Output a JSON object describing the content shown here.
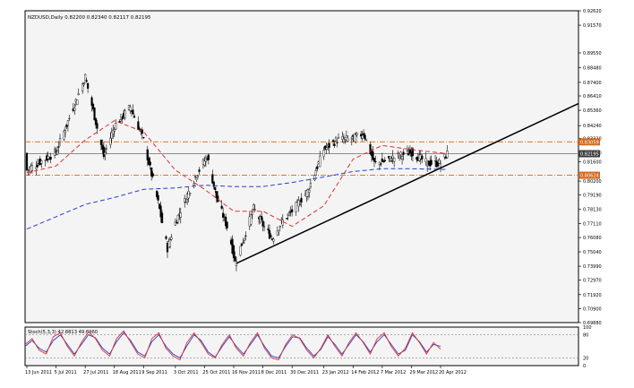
{
  "chart_data": {
    "type": "candlestick",
    "header": "NZDUSD,Daily  0.82200 0.82340 0.82117 0.82195",
    "price_axis": {
      "ticks": [
        "0.92620",
        "0.91570",
        "0.89550",
        "0.88480",
        "0.87400",
        "0.86410",
        "0.85360",
        "0.84240",
        "0.83320",
        "0.82250",
        "0.81600",
        "0.80200",
        "0.79190",
        "0.78130",
        "0.77110",
        "0.76080",
        "0.75040",
        "0.73990",
        "0.72970",
        "0.71920",
        "0.70900",
        "0.69880"
      ],
      "ylim": [
        0.6988,
        0.9262
      ],
      "current_price_label": "0.82195",
      "upper_level_label": "0.83059",
      "lower_level_label": "0.80624"
    },
    "date_axis": {
      "labels": [
        "13 Jun 2011",
        "5 Jul 2011",
        "27 Jul 2011",
        "18 Aug 2011",
        "9 Sep 2011",
        "3 Oct 2011",
        "25 Oct 2011",
        "16 Nov 2011",
        "8 Dec 2011",
        "30 Dec 2011",
        "23 Jan 2012",
        "14 Feb 2012",
        "7 Mar 2012",
        "29 Mar 2012",
        "20 Apr 2012"
      ]
    },
    "price_path": [
      {
        "date": "13 Jun 2011",
        "price": 0.81
      },
      {
        "date": "5 Jul 2011",
        "price": 0.823
      },
      {
        "date": "27 Jul 2011",
        "price": 0.878
      },
      {
        "date": "10 Aug 2011",
        "price": 0.82
      },
      {
        "date": "18 Aug 2011",
        "price": 0.842
      },
      {
        "date": "30 Aug 2011",
        "price": 0.856
      },
      {
        "date": "9 Sep 2011",
        "price": 0.832
      },
      {
        "date": "20 Sep 2011",
        "price": 0.786
      },
      {
        "date": "27 Sep 2011",
        "price": 0.753
      },
      {
        "date": "3 Oct 2011",
        "price": 0.772
      },
      {
        "date": "18 Oct 2011",
        "price": 0.805
      },
      {
        "date": "27 Oct 2011",
        "price": 0.82
      },
      {
        "date": "3 Nov 2011",
        "price": 0.79
      },
      {
        "date": "12 Nov 2011",
        "price": 0.766
      },
      {
        "date": "17 Nov 2011",
        "price": 0.743
      },
      {
        "date": "22 Nov 2011",
        "price": 0.756
      },
      {
        "date": "1 Dec 2011",
        "price": 0.782
      },
      {
        "date": "8 Dec 2011",
        "price": 0.77
      },
      {
        "date": "15 Dec 2011",
        "price": 0.76
      },
      {
        "date": "22 Dec 2011",
        "price": 0.772
      },
      {
        "date": "30 Dec 2011",
        "price": 0.78
      },
      {
        "date": "11 Jan 2012",
        "price": 0.795
      },
      {
        "date": "23 Jan 2012",
        "price": 0.825
      },
      {
        "date": "2 Feb 2012",
        "price": 0.832
      },
      {
        "date": "14 Feb 2012",
        "price": 0.833
      },
      {
        "date": "22 Feb 2012",
        "price": 0.837
      },
      {
        "date": "1 Mar 2012",
        "price": 0.815
      },
      {
        "date": "7 Mar 2012",
        "price": 0.816
      },
      {
        "date": "18 Mar 2012",
        "price": 0.82
      },
      {
        "date": "29 Mar 2012",
        "price": 0.823
      },
      {
        "date": "10 Apr 2012",
        "price": 0.815
      },
      {
        "date": "20 Apr 2012",
        "price": 0.815
      },
      {
        "date": "25 Apr 2012",
        "price": 0.822
      }
    ],
    "moving_averages": [
      {
        "color": "#e03030",
        "style": "dashed",
        "points": [
          {
            "date": "13 Jun 2011",
            "price": 0.808
          },
          {
            "date": "5 Jul 2011",
            "price": 0.813
          },
          {
            "date": "27 Jul 2011",
            "price": 0.832
          },
          {
            "date": "18 Aug 2011",
            "price": 0.846
          },
          {
            "date": "9 Sep 2011",
            "price": 0.838
          },
          {
            "date": "3 Oct 2011",
            "price": 0.81
          },
          {
            "date": "25 Oct 2011",
            "price": 0.796
          },
          {
            "date": "16 Nov 2011",
            "price": 0.78
          },
          {
            "date": "8 Dec 2011",
            "price": 0.78
          },
          {
            "date": "30 Dec 2011",
            "price": 0.769
          },
          {
            "date": "23 Jan 2012",
            "price": 0.784
          },
          {
            "date": "14 Feb 2012",
            "price": 0.818
          },
          {
            "date": "7 Mar 2012",
            "price": 0.828
          },
          {
            "date": "29 Mar 2012",
            "price": 0.825
          },
          {
            "date": "25 Apr 2012",
            "price": 0.822
          }
        ]
      },
      {
        "color": "#2a3fc8",
        "style": "dashed",
        "points": [
          {
            "date": "13 Jun 2011",
            "price": 0.767
          },
          {
            "date": "5 Jul 2011",
            "price": 0.776
          },
          {
            "date": "27 Jul 2011",
            "price": 0.785
          },
          {
            "date": "18 Aug 2011",
            "price": 0.79
          },
          {
            "date": "9 Sep 2011",
            "price": 0.796
          },
          {
            "date": "3 Oct 2011",
            "price": 0.797
          },
          {
            "date": "25 Oct 2011",
            "price": 0.799
          },
          {
            "date": "16 Nov 2011",
            "price": 0.798
          },
          {
            "date": "8 Dec 2011",
            "price": 0.798
          },
          {
            "date": "30 Dec 2011",
            "price": 0.801
          },
          {
            "date": "23 Jan 2012",
            "price": 0.805
          },
          {
            "date": "14 Feb 2012",
            "price": 0.809
          },
          {
            "date": "7 Mar 2012",
            "price": 0.811
          },
          {
            "date": "29 Mar 2012",
            "price": 0.811
          },
          {
            "date": "25 Apr 2012",
            "price": 0.8105
          }
        ]
      }
    ],
    "trendline": {
      "color": "#000000",
      "start": {
        "date": "18 Nov 2011",
        "price": 0.742
      },
      "end": {
        "date": "21 Apr 2012",
        "price": 0.812
      },
      "extended_to_right_edge": true
    },
    "levels": [
      {
        "price": 0.83059,
        "color": "#d2691e",
        "style": "dash-dot"
      },
      {
        "price": 0.80624,
        "color": "#d2691e",
        "style": "dash-dot"
      },
      {
        "price": 0.82195,
        "color": "#808080",
        "style": "solid"
      }
    ],
    "oscillator": {
      "title": "Stoch(5,3,3) 42.8813 49.6960",
      "scale_labels": [
        "100",
        "80",
        "20",
        "0"
      ],
      "levels": [
        80,
        20
      ],
      "k_color": "#e03030",
      "d_color": "#2a3fc8",
      "k_values": [
        55,
        70,
        40,
        30,
        75,
        85,
        50,
        25,
        60,
        88,
        70,
        40,
        25,
        70,
        90,
        60,
        30,
        20,
        70,
        85,
        45,
        25,
        15,
        60,
        85,
        60,
        30,
        20,
        55,
        80,
        45,
        25,
        60,
        85,
        45,
        20,
        15,
        55,
        80,
        70,
        40,
        20,
        45,
        80,
        50,
        25,
        60,
        85,
        60,
        30,
        70,
        85,
        50,
        25,
        45,
        85,
        60,
        30,
        60,
        43
      ],
      "d_values": [
        50,
        65,
        45,
        35,
        65,
        80,
        55,
        30,
        55,
        80,
        72,
        45,
        30,
        62,
        85,
        65,
        35,
        25,
        62,
        80,
        50,
        30,
        20,
        52,
        80,
        65,
        35,
        22,
        50,
        75,
        50,
        30,
        55,
        80,
        50,
        25,
        20,
        50,
        75,
        72,
        45,
        25,
        42,
        75,
        55,
        30,
        55,
        80,
        62,
        35,
        62,
        80,
        55,
        30,
        40,
        80,
        62,
        35,
        55,
        50
      ]
    },
    "colors": {
      "plot_bg": "#f4f4f4",
      "candle": "#000000",
      "grid": "none"
    }
  }
}
